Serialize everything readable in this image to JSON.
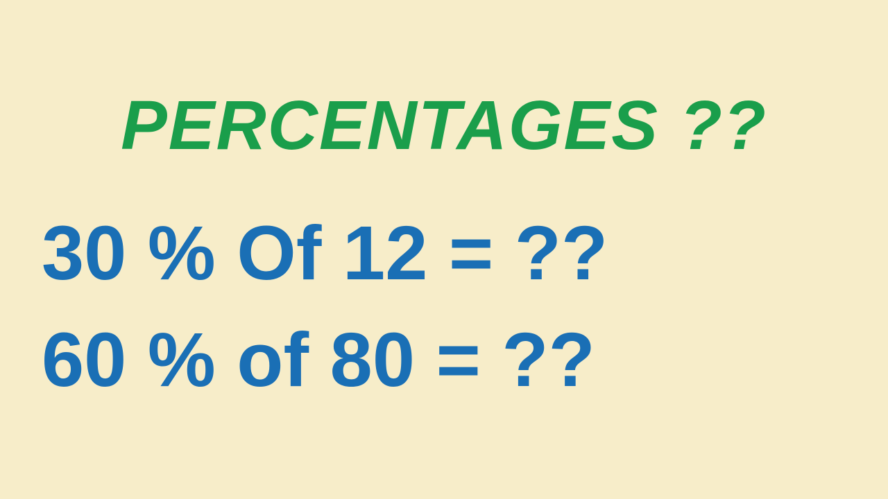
{
  "title": {
    "text": "PERCENTAGES ??",
    "color": "#1a9e4b",
    "fontsize": 100,
    "fontweight": 900,
    "fontstyle": "italic"
  },
  "equation1": {
    "text": "30 % Of 12 = ??",
    "color": "#1a6fb5",
    "fontsize": 110
  },
  "equation2": {
    "text": "60 % of 80 = ??",
    "color": "#1a6fb5",
    "fontsize": 110
  },
  "background_color": "#f7edc9"
}
